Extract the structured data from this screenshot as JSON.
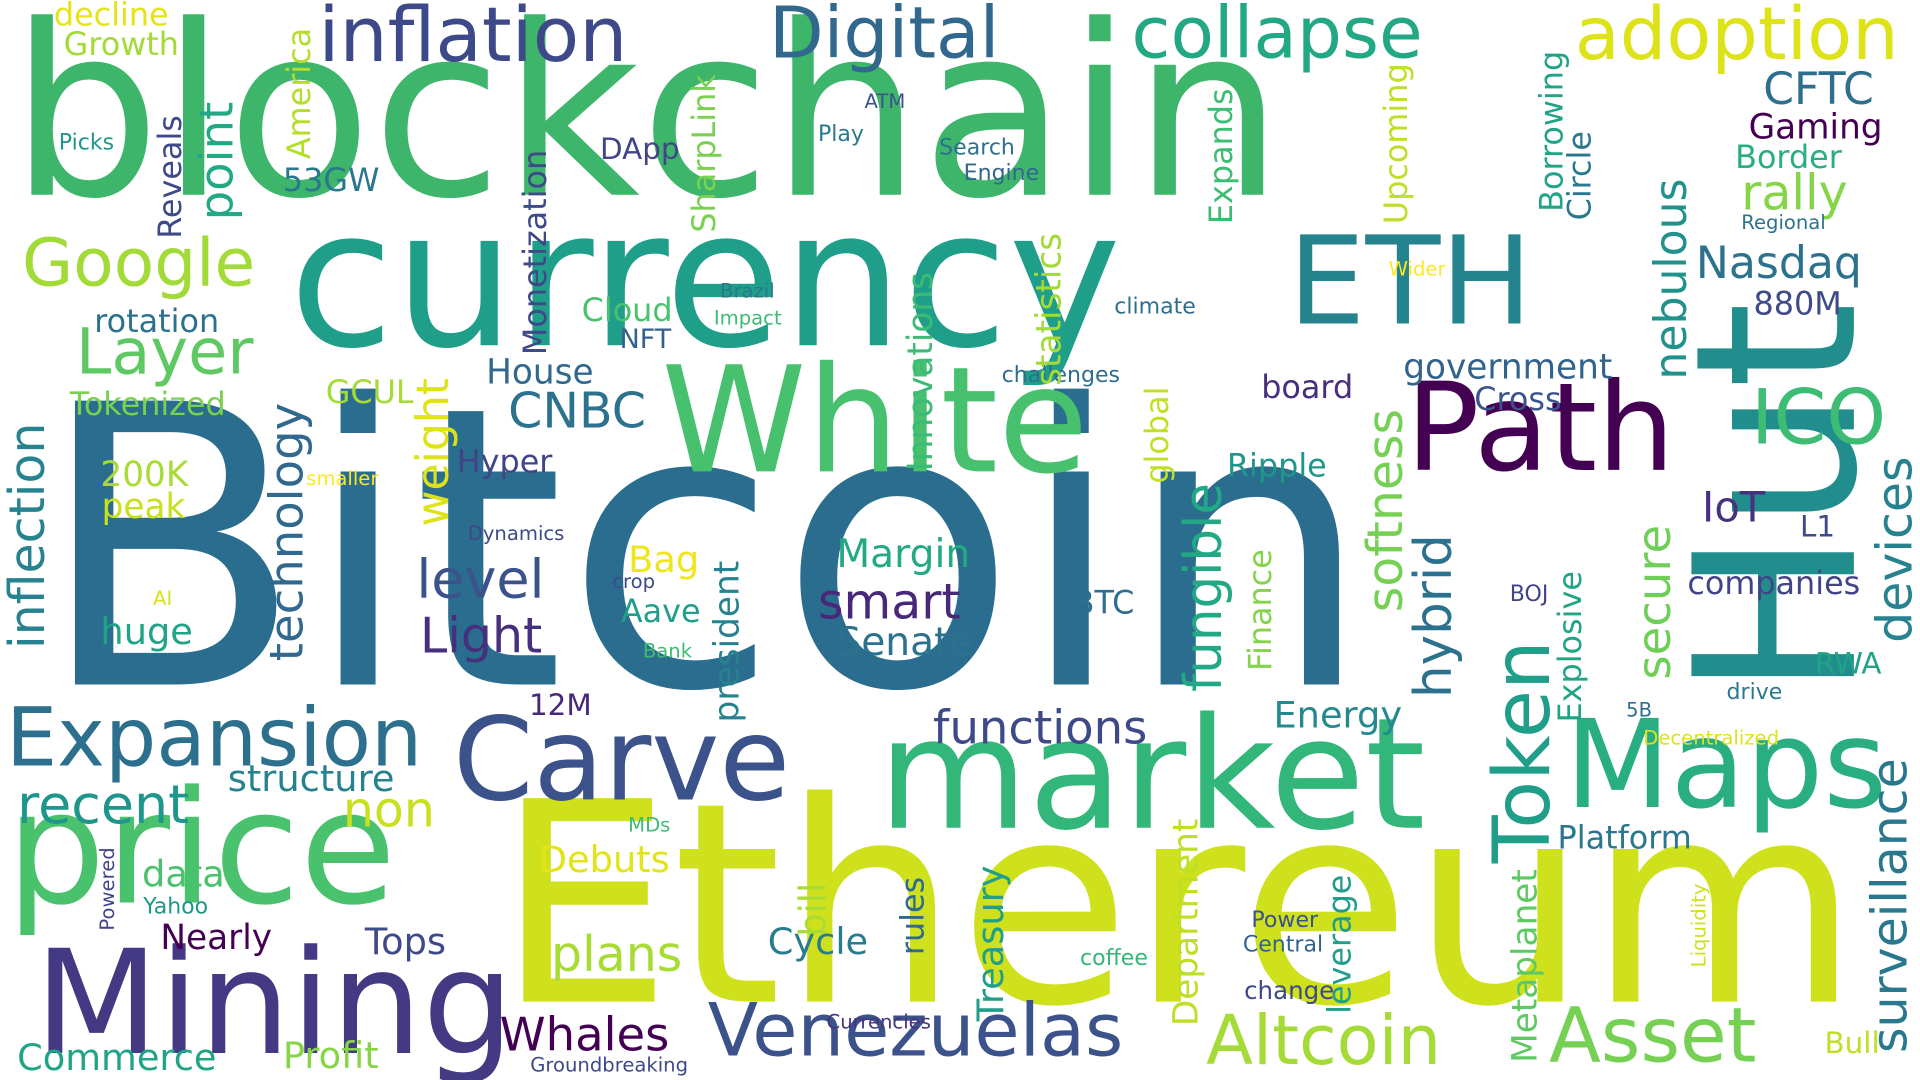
{
  "words": [
    {
      "text": "Bitcoin",
      "color": "#2a6d8e"
    },
    {
      "text": "Ethereum",
      "color": "#cfe11c"
    },
    {
      "text": "blockchain",
      "color": "#3db66c"
    },
    {
      "text": "currency",
      "color": "#1f9e89"
    },
    {
      "text": "Hut",
      "color": "#218e8d"
    },
    {
      "text": "White",
      "color": "#47c16e"
    },
    {
      "text": "market",
      "color": "#32b67a"
    },
    {
      "text": "price",
      "color": "#4ac16d"
    },
    {
      "text": "Maps",
      "color": "#28ae80"
    },
    {
      "text": "ETH",
      "color": "#25838e"
    },
    {
      "text": "Path",
      "color": "#440154"
    },
    {
      "text": "Mining",
      "color": "#443983"
    },
    {
      "text": "Carve",
      "color": "#3b528b"
    },
    {
      "text": "Expansion",
      "color": "#2d708e"
    },
    {
      "text": "Venezuelas",
      "color": "#3b528b"
    },
    {
      "text": "Altcoin",
      "color": "#a5db36"
    },
    {
      "text": "Asset",
      "color": "#75d054"
    },
    {
      "text": "inflation",
      "color": "#3e4989"
    },
    {
      "text": "Digital",
      "color": "#31688e"
    },
    {
      "text": "collapse",
      "color": "#22a884"
    },
    {
      "text": "adoption",
      "color": "#dde318"
    },
    {
      "text": "Token",
      "color": "#1f9e89"
    },
    {
      "text": "Google",
      "color": "#a2da37"
    },
    {
      "text": "Layer",
      "color": "#5ec962"
    },
    {
      "text": "ICO",
      "color": "#3dbc74"
    },
    {
      "text": "surveillance",
      "color": "#2a788e"
    },
    {
      "text": "devices",
      "color": "#26828e"
    },
    {
      "text": "CFTC",
      "color": "#2e6f8e"
    },
    {
      "text": "Gaming",
      "color": "#440154"
    },
    {
      "text": "Border",
      "color": "#29af7f"
    },
    {
      "text": "rally",
      "color": "#86d549"
    },
    {
      "text": "Nasdaq",
      "color": "#2c718e"
    },
    {
      "text": "880M",
      "color": "#3e4a89"
    },
    {
      "text": "nebulous",
      "color": "#21918c"
    },
    {
      "text": "secure",
      "color": "#6ece58"
    },
    {
      "text": "hybrid",
      "color": "#2c728e"
    },
    {
      "text": "softness",
      "color": "#75d054"
    },
    {
      "text": "fungible",
      "color": "#22a884"
    },
    {
      "text": "government",
      "color": "#33638d"
    },
    {
      "text": "Cross",
      "color": "#3b528b"
    },
    {
      "text": "board",
      "color": "#472f7d"
    },
    {
      "text": "IoT",
      "color": "#46327e"
    },
    {
      "text": "L1",
      "color": "#3e4989"
    },
    {
      "text": "companies",
      "color": "#414487"
    },
    {
      "text": "RWA",
      "color": "#20a386"
    },
    {
      "text": "drive",
      "color": "#2a788e"
    },
    {
      "text": "Decentralized",
      "color": "#dde318"
    },
    {
      "text": "Platform",
      "color": "#2a768e"
    },
    {
      "text": "Bull",
      "color": "#bddf26"
    },
    {
      "text": "Liquidity",
      "color": "#d0e11c"
    },
    {
      "text": "Metaplanet",
      "color": "#5ec962"
    },
    {
      "text": "leverage",
      "color": "#1f9e89"
    },
    {
      "text": "Power",
      "color": "#3b528b"
    },
    {
      "text": "Central",
      "color": "#33638d"
    },
    {
      "text": "change",
      "color": "#3e4989"
    },
    {
      "text": "coffee",
      "color": "#35b779"
    },
    {
      "text": "Department",
      "color": "#bddf26"
    },
    {
      "text": "Treasury",
      "color": "#1f9e89"
    },
    {
      "text": "rules",
      "color": "#31688e"
    },
    {
      "text": "bill",
      "color": "#a8db34"
    },
    {
      "text": "Explosive",
      "color": "#20a486"
    },
    {
      "text": "BOJ",
      "color": "#414487"
    },
    {
      "text": "5B",
      "color": "#2e6e8e"
    },
    {
      "text": "Energy",
      "color": "#23898e"
    },
    {
      "text": "Finance",
      "color": "#84d44b"
    },
    {
      "text": "Ripple",
      "color": "#1f968b"
    },
    {
      "text": "global",
      "color": "#c2df23"
    },
    {
      "text": "challenges",
      "color": "#2e6e8e"
    },
    {
      "text": "climate",
      "color": "#2d708e"
    },
    {
      "text": "Innovations",
      "color": "#3bbb75"
    },
    {
      "text": "statistics",
      "color": "#a2da37"
    },
    {
      "text": "Upcoming",
      "color": "#bddf26"
    },
    {
      "text": "Expands",
      "color": "#3dbc74"
    },
    {
      "text": "Borrowing",
      "color": "#20a386"
    },
    {
      "text": "Circle",
      "color": "#2a788e"
    },
    {
      "text": "Regional",
      "color": "#2c728e"
    },
    {
      "text": "Wider",
      "color": "#fde725"
    },
    {
      "text": "Search",
      "color": "#2c718e"
    },
    {
      "text": "Engine",
      "color": "#31688e"
    },
    {
      "text": "ATM",
      "color": "#3b528b"
    },
    {
      "text": "Play",
      "color": "#2a788e"
    },
    {
      "text": "DApp",
      "color": "#414487"
    },
    {
      "text": "SharpLink",
      "color": "#7ad151"
    },
    {
      "text": "Monetization",
      "color": "#3e4989"
    },
    {
      "text": "Brazil",
      "color": "#2a788e"
    },
    {
      "text": "Impact",
      "color": "#3dbc74"
    },
    {
      "text": "Cloud",
      "color": "#4ac16d"
    },
    {
      "text": "NFT",
      "color": "#34608d"
    },
    {
      "text": "House",
      "color": "#31688e"
    },
    {
      "text": "CNBC",
      "color": "#2c728e"
    },
    {
      "text": "Hyper",
      "color": "#414487"
    },
    {
      "text": "smaller",
      "color": "#fde725"
    },
    {
      "text": "Dynamics",
      "color": "#3e4989"
    },
    {
      "text": "crop",
      "color": "#3e4989"
    },
    {
      "text": "Bank",
      "color": "#3dbc74"
    },
    {
      "text": "BTC",
      "color": "#2e6e8e"
    },
    {
      "text": "Margin",
      "color": "#23a983"
    },
    {
      "text": "smart",
      "color": "#482878"
    },
    {
      "text": "Senate",
      "color": "#2c728e"
    },
    {
      "text": "functions",
      "color": "#3e4989"
    },
    {
      "text": "president",
      "color": "#26828e"
    },
    {
      "text": "Bag",
      "color": "#f1e51d"
    },
    {
      "text": "Aave",
      "color": "#1f9e89"
    },
    {
      "text": "level",
      "color": "#3b528b"
    },
    {
      "text": "Light",
      "color": "#46307e"
    },
    {
      "text": "technology",
      "color": "#31688e"
    },
    {
      "text": "weight",
      "color": "#dde318"
    },
    {
      "text": "GCUL",
      "color": "#a5db36"
    },
    {
      "text": "12M",
      "color": "#482878"
    },
    {
      "text": "structure",
      "color": "#26828e"
    },
    {
      "text": "non",
      "color": "#c8e020"
    },
    {
      "text": "recent",
      "color": "#1f968b"
    },
    {
      "text": "data",
      "color": "#4ac16d"
    },
    {
      "text": "Debuts",
      "color": "#e2e418"
    },
    {
      "text": "plans",
      "color": "#a8db34"
    },
    {
      "text": "MDs",
      "color": "#3dbc74"
    },
    {
      "text": "Powered",
      "color": "#414487"
    },
    {
      "text": "Yahoo",
      "color": "#1f968b"
    },
    {
      "text": "Nearly",
      "color": "#440154"
    },
    {
      "text": "Tops",
      "color": "#3e4989"
    },
    {
      "text": "Cycle",
      "color": "#297b8e"
    },
    {
      "text": "Whales",
      "color": "#440154"
    },
    {
      "text": "Profit",
      "color": "#86d549"
    },
    {
      "text": "Commerce",
      "color": "#20a486"
    },
    {
      "text": "Groundbreaking",
      "color": "#3e4989"
    },
    {
      "text": "Currencies",
      "color": "#46327e"
    },
    {
      "text": "Tokenized",
      "color": "#7ad151"
    },
    {
      "text": "rotation",
      "color": "#2c728e"
    },
    {
      "text": "inflection",
      "color": "#26828e"
    },
    {
      "text": "200K",
      "color": "#a8db34"
    },
    {
      "text": "peak",
      "color": "#c8e020"
    },
    {
      "text": "AI",
      "color": "#d8e219"
    },
    {
      "text": "huge",
      "color": "#20a386"
    },
    {
      "text": "point",
      "color": "#22a884"
    },
    {
      "text": "53GW",
      "color": "#2a788e"
    },
    {
      "text": "Reveals",
      "color": "#3e4989"
    },
    {
      "text": "America",
      "color": "#b5de2b"
    },
    {
      "text": "Picks",
      "color": "#1f968b"
    },
    {
      "text": "decline",
      "color": "#e5e419"
    },
    {
      "text": "Growth",
      "color": "#a2da37"
    }
  ]
}
